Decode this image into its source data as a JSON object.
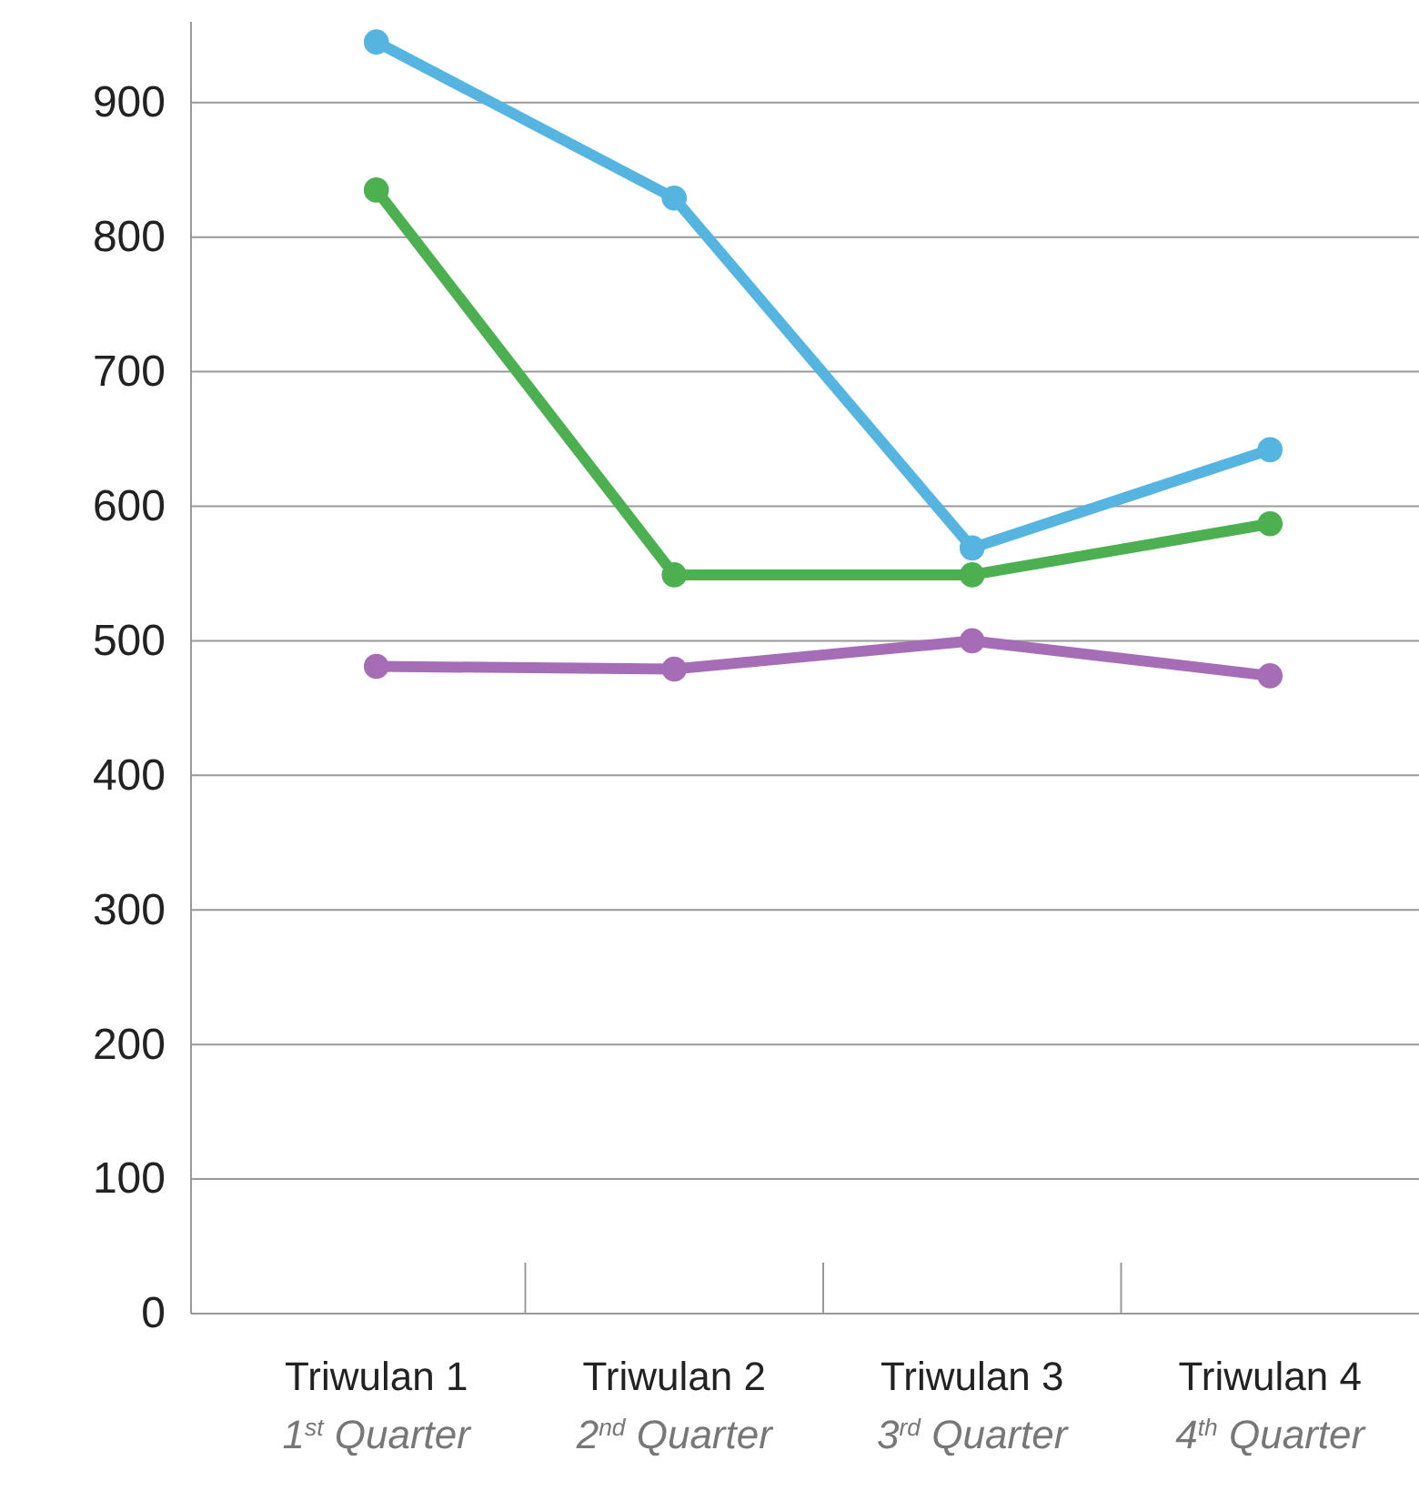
{
  "chart_data": {
    "type": "line",
    "categories": [
      "Triwulan 1\n1$^{st}$ Quarter",
      "Triwulan 2\n2$^{nd}$ Quarter",
      "Triwulan 3\n3$^{rd}$ Quarter",
      "Triwulan 4\n4$^{th}$ Quarter"
    ],
    "series": [
      {
        "color": "#55b4e0",
        "values": [
          945,
          829,
          569,
          642
        ]
      },
      {
        "color": "#4caf50",
        "values": [
          835,
          549,
          549,
          587
        ]
      },
      {
        "color": "#a56db5",
        "values": [
          481,
          479,
          500,
          474
        ]
      }
    ],
    "ylim": [
      0,
      960
    ],
    "yticks": [
      0,
      100,
      200,
      300,
      400,
      500,
      600,
      700,
      800,
      900
    ],
    "grid": "y",
    "marker": "circle",
    "line_style": "solid"
  }
}
